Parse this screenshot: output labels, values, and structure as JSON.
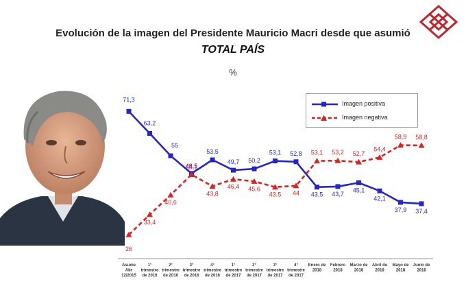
{
  "header": {
    "title": "Evolución de la imagen del Presidente Mauricio Macri desde que asumió",
    "subtitle": "TOTAL PAÍS",
    "unit": "%"
  },
  "logo": {
    "name": "diamond-lattice-logo",
    "color": "#c0272d"
  },
  "photo": {
    "name": "president-portrait-photo"
  },
  "colors": {
    "positive": "#2525d0",
    "negative": "#e02020",
    "axis": "#999999"
  },
  "chart_data": {
    "type": "line",
    "categories": [
      [
        "Asume",
        "Abr",
        "12/2015"
      ],
      [
        "1°",
        "trimestre",
        "de 2016"
      ],
      [
        "2°",
        "trimestre",
        "de 2016"
      ],
      [
        "3°",
        "trimestre",
        "de 2016"
      ],
      [
        "4°",
        "trimestre",
        "de 2016"
      ],
      [
        "1°",
        "trimestre",
        "de 2017"
      ],
      [
        "2°",
        "trimestre",
        "de 2017"
      ],
      [
        "3°",
        "trimestre",
        "de 2017"
      ],
      [
        "4°",
        "trimestre",
        "de 2017"
      ],
      [
        "Enero de",
        "2018"
      ],
      [
        "Febrero",
        "2018"
      ],
      [
        "Marzo de",
        "2018"
      ],
      [
        "Abril de",
        "2018"
      ],
      [
        "Mayo de",
        "2018"
      ],
      [
        "Junio de",
        "2018"
      ]
    ],
    "series": [
      {
        "name": "Imagen positiva",
        "values": [
          71.3,
          63.2,
          55,
          48.5,
          53.5,
          49.7,
          50.2,
          53.1,
          52.8,
          43.5,
          43.7,
          45.1,
          42.1,
          37.9,
          37.4
        ],
        "labels": [
          "71,3",
          "63,2",
          "55",
          "48,5",
          "53,5",
          "49,7",
          "50,2",
          "53,1",
          "52,8",
          "43,5",
          "43,7",
          "45,1",
          "42,1",
          "37,9",
          "37,4"
        ]
      },
      {
        "name": "Imagen negativa",
        "values": [
          26,
          33.4,
          40.6,
          48.1,
          43.8,
          46.4,
          45.6,
          43.5,
          44,
          53.1,
          53.2,
          52.7,
          54.4,
          58.9,
          58.8
        ],
        "labels": [
          "26",
          "33,4",
          "40,6",
          "48,1",
          "43,8",
          "46,4",
          "45,6",
          "43,5",
          "44",
          "53,1",
          "53,2",
          "52,7",
          "54,4",
          "58,9",
          "58,8"
        ]
      }
    ],
    "ylim": [
      20,
      80
    ],
    "grid": false,
    "legend": "top-right"
  }
}
